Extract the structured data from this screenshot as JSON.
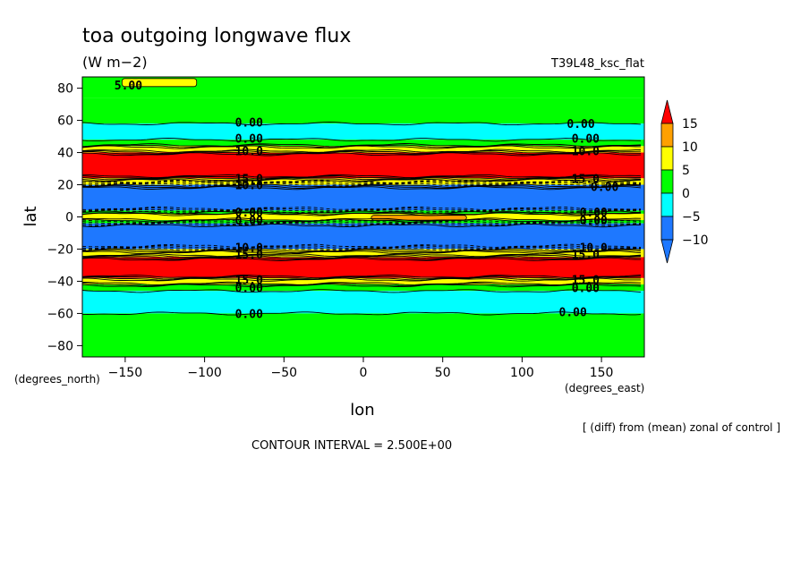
{
  "chart_data": {
    "type": "contour",
    "title": "toa outgoing longwave flux",
    "units": "(W m−2)",
    "experiment": "T39L48_ksc_flat",
    "xlabel": "lon",
    "ylabel": "lat",
    "x_unit_label": "(degrees_east)",
    "y_unit_label": "(degrees_north)",
    "xlim": [
      -177,
      177
    ],
    "ylim": [
      -87,
      87
    ],
    "x_ticks": [
      -150,
      -100,
      -50,
      0,
      50,
      100,
      150
    ],
    "x_tick_labels": [
      "−150",
      "−100",
      "−50",
      "0",
      "50",
      "100",
      "150"
    ],
    "y_ticks": [
      -80,
      -60,
      -40,
      -20,
      0,
      20,
      40,
      60,
      80
    ],
    "y_tick_labels": [
      "−80",
      "−60",
      "−40",
      "−20",
      "0",
      "20",
      "40",
      "60",
      "80"
    ],
    "note": "[ (diff) from (mean) zonal of control ]",
    "contour_interval_text": "CONTOUR INTERVAL = 2.500E+00",
    "colorbar": {
      "levels": [
        -10,
        -5,
        0,
        5,
        10,
        15
      ],
      "tick_labels": [
        "−10",
        "−5",
        "0",
        "5",
        "10",
        "15"
      ],
      "colors": [
        "#1e78ff",
        "#00ffff",
        "#00ff00",
        "#ffff00",
        "#ffa000",
        "#ff0000"
      ]
    },
    "zonal_bands": [
      {
        "lat_from": 74,
        "lat_to": 87,
        "value": 2.5
      },
      {
        "lat_from": 58,
        "lat_to": 74,
        "value": 2
      },
      {
        "lat_from": 48,
        "lat_to": 58,
        "value": -2
      },
      {
        "lat_from": 44,
        "lat_to": 48,
        "value": 2
      },
      {
        "lat_from": 40,
        "lat_to": 44,
        "value": 8
      },
      {
        "lat_from": 24,
        "lat_to": 40,
        "value": 18
      },
      {
        "lat_from": 20,
        "lat_to": 24,
        "value": 6
      },
      {
        "lat_from": 4,
        "lat_to": 20,
        "value": -12
      },
      {
        "lat_from": 2,
        "lat_to": 4,
        "value": 1
      },
      {
        "lat_from": -2,
        "lat_to": 2,
        "value": 7
      },
      {
        "lat_from": -4,
        "lat_to": -2,
        "value": 1
      },
      {
        "lat_from": -20,
        "lat_to": -4,
        "value": -12
      },
      {
        "lat_from": -25,
        "lat_to": -20,
        "value": 6
      },
      {
        "lat_from": -38,
        "lat_to": -25,
        "value": 18
      },
      {
        "lat_from": -42,
        "lat_to": -38,
        "value": 8
      },
      {
        "lat_from": -46,
        "lat_to": -42,
        "value": 2
      },
      {
        "lat_from": -60,
        "lat_to": -46,
        "value": -2
      },
      {
        "lat_from": -87,
        "lat_to": -60,
        "value": 2
      }
    ],
    "patches": [
      {
        "lon_from": 5,
        "lon_to": 65,
        "lat_from": -2,
        "lat_to": 1,
        "value": 12
      },
      {
        "lon_from": -152,
        "lon_to": -105,
        "lat_from": 81,
        "lat_to": 86,
        "value": 7
      }
    ],
    "contour_labels": [
      {
        "lon": -148,
        "lat": 82,
        "text": "5.00"
      },
      {
        "lon": -72,
        "lat": 59,
        "text": "0.00"
      },
      {
        "lon": 137,
        "lat": 58,
        "text": "0.00"
      },
      {
        "lon": -72,
        "lat": 49,
        "text": "0.00"
      },
      {
        "lon": 140,
        "lat": 49,
        "text": "0.00"
      },
      {
        "lon": -72,
        "lat": 41,
        "text": "10.0"
      },
      {
        "lon": 140,
        "lat": 41,
        "text": "10.0"
      },
      {
        "lon": -72,
        "lat": 24,
        "text": "15.0"
      },
      {
        "lon": 140,
        "lat": 24,
        "text": "15.0"
      },
      {
        "lon": -72,
        "lat": 20,
        "text": "10.0"
      },
      {
        "lon": 152,
        "lat": 19,
        "text": "0.00"
      },
      {
        "lon": -72,
        "lat": 3,
        "text": "0.00"
      },
      {
        "lon": 145,
        "lat": 3,
        "text": "0.00"
      },
      {
        "lon": -72,
        "lat": -2,
        "text": "0.00"
      },
      {
        "lon": 145,
        "lat": -2,
        "text": "0.00"
      },
      {
        "lon": -72,
        "lat": -19,
        "text": "10.0"
      },
      {
        "lon": 145,
        "lat": -19,
        "text": "10.0"
      },
      {
        "lon": -72,
        "lat": -23,
        "text": "15.0"
      },
      {
        "lon": 140,
        "lat": -23,
        "text": "15.0"
      },
      {
        "lon": -72,
        "lat": -39,
        "text": "15.0"
      },
      {
        "lon": 140,
        "lat": -39,
        "text": "15.0"
      },
      {
        "lon": -72,
        "lat": -44,
        "text": "0.00"
      },
      {
        "lon": 140,
        "lat": -44,
        "text": "0.00"
      },
      {
        "lon": -72,
        "lat": -60,
        "text": "0.00"
      },
      {
        "lon": 132,
        "lat": -59,
        "text": "0.00"
      }
    ],
    "grid": false,
    "colorbar_placement": "right"
  }
}
